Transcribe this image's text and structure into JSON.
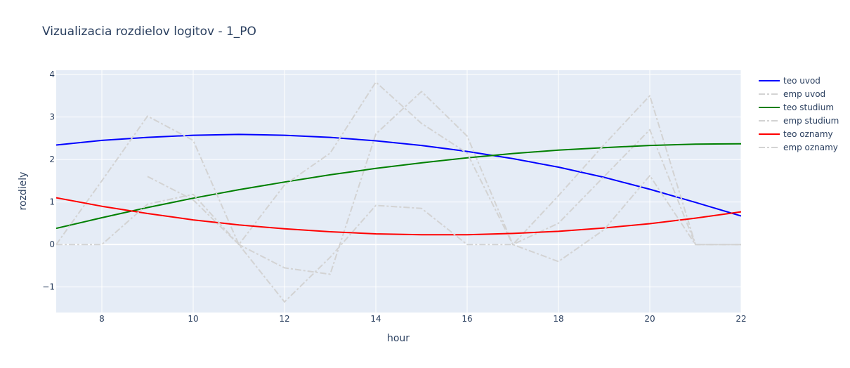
{
  "chart_data": {
    "type": "line",
    "title": "Vizualizacia rozdielov logitov - 1_PO",
    "xlabel": "hour",
    "ylabel": "rozdiely",
    "xlim": [
      7,
      22
    ],
    "ylim": [
      -1.6,
      4.1
    ],
    "xticks": [
      8,
      10,
      12,
      14,
      16,
      18,
      20,
      22
    ],
    "yticks": [
      -1,
      0,
      1,
      2,
      3,
      4
    ],
    "ytick_labels": [
      "−1",
      "0",
      "1",
      "2",
      "3",
      "4"
    ],
    "grid": true,
    "legend_position": "right",
    "plot_bg": "#e5ecf6",
    "series": [
      {
        "name": "teo uvod",
        "color": "#0000ff",
        "dash": "solid",
        "x": [
          7,
          8,
          9,
          10,
          11,
          12,
          13,
          14,
          15,
          16,
          17,
          18,
          19,
          20,
          21,
          22
        ],
        "y": [
          2.34,
          2.45,
          2.52,
          2.57,
          2.59,
          2.57,
          2.52,
          2.44,
          2.33,
          2.19,
          2.02,
          1.82,
          1.58,
          1.3,
          0.99,
          0.67
        ]
      },
      {
        "name": "emp uvod",
        "color": "#d3d3d3",
        "dash": "dashdot",
        "x": [
          9,
          10,
          11,
          12,
          13,
          14,
          15,
          16,
          17,
          18,
          19,
          20,
          21,
          22
        ],
        "y": [
          1.6,
          1.05,
          0.0,
          -0.55,
          -0.7,
          2.6,
          3.6,
          2.55,
          0.0,
          0.5,
          1.6,
          2.7,
          0.0,
          0.0
        ]
      },
      {
        "name": "teo studium",
        "color": "#008000",
        "dash": "solid",
        "x": [
          7,
          8,
          9,
          10,
          11,
          12,
          13,
          14,
          15,
          16,
          17,
          18,
          19,
          20,
          21,
          22
        ],
        "y": [
          0.38,
          0.63,
          0.87,
          1.09,
          1.29,
          1.47,
          1.64,
          1.79,
          1.92,
          2.04,
          2.14,
          2.22,
          2.28,
          2.33,
          2.36,
          2.37
        ]
      },
      {
        "name": "emp studium",
        "color": "#d3d3d3",
        "dash": "dashdot",
        "x": [
          7,
          8,
          9,
          10,
          11,
          12,
          13,
          14,
          15,
          16,
          17,
          18,
          19,
          20,
          21,
          22
        ],
        "y": [
          0.0,
          1.5,
          3.02,
          2.45,
          0.0,
          1.4,
          2.15,
          3.82,
          2.85,
          2.15,
          0.0,
          1.15,
          2.35,
          3.5,
          0.0,
          0.0
        ]
      },
      {
        "name": "teo oznamy",
        "color": "#ff0000",
        "dash": "solid",
        "x": [
          7,
          8,
          9,
          10,
          11,
          12,
          13,
          14,
          15,
          16,
          17,
          18,
          19,
          20,
          21,
          22
        ],
        "y": [
          1.1,
          0.9,
          0.73,
          0.58,
          0.46,
          0.37,
          0.3,
          0.25,
          0.23,
          0.23,
          0.26,
          0.31,
          0.39,
          0.49,
          0.62,
          0.77
        ]
      },
      {
        "name": "emp oznamy",
        "color": "#d3d3d3",
        "dash": "dashdot",
        "x": [
          7,
          8,
          9,
          10,
          11,
          12,
          13,
          14,
          15,
          16,
          17,
          18,
          19,
          20,
          21,
          22
        ],
        "y": [
          0.0,
          0.0,
          0.95,
          1.18,
          0.0,
          -1.35,
          -0.3,
          0.92,
          0.85,
          0.0,
          0.0,
          -0.4,
          0.35,
          1.62,
          0.0,
          0.0
        ]
      }
    ]
  }
}
